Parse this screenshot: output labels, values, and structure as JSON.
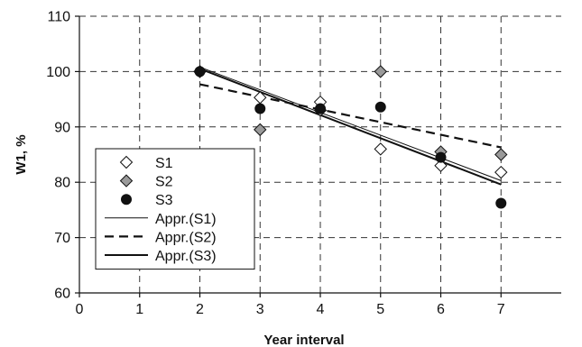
{
  "chart_data": {
    "type": "scatter",
    "title": "",
    "xlabel": "Year interval",
    "ylabel": "W1, %",
    "xlim": [
      0,
      8
    ],
    "ylim": [
      60,
      110
    ],
    "xticks": [
      0,
      1,
      2,
      3,
      4,
      5,
      6,
      7
    ],
    "yticks": [
      60,
      70,
      80,
      90,
      100,
      110
    ],
    "grid": true,
    "grid_style": "dashed",
    "legend_position": "bottom-left",
    "series": [
      {
        "name": "S1",
        "kind": "points",
        "marker": "diamond-open",
        "x": [
          2,
          3,
          4,
          5,
          6,
          7
        ],
        "y": [
          100,
          95.3,
          94.5,
          86,
          83,
          81.8
        ]
      },
      {
        "name": "S2",
        "kind": "points",
        "marker": "diamond-gray",
        "x": [
          2,
          3,
          4,
          5,
          6,
          7
        ],
        "y": [
          100,
          89.5,
          93,
          100,
          85.5,
          85
        ]
      },
      {
        "name": "S3",
        "kind": "points",
        "marker": "circle-filled",
        "x": [
          2,
          3,
          4,
          5,
          6,
          7
        ],
        "y": [
          100,
          93.3,
          93.3,
          93.6,
          84.5,
          76.2
        ]
      },
      {
        "name": "Appr.(S1)",
        "kind": "line",
        "style": "thin-solid",
        "x": [
          2,
          7
        ],
        "y": [
          100.8,
          80.3
        ]
      },
      {
        "name": "Appr.(S2)",
        "kind": "line",
        "style": "dashed",
        "x": [
          2,
          7
        ],
        "y": [
          97.7,
          86.3
        ]
      },
      {
        "name": "Appr.(S3)",
        "kind": "line",
        "style": "thick-solid",
        "x": [
          2,
          7
        ],
        "y": [
          100.5,
          79.6
        ]
      }
    ],
    "colors": {
      "axis": "#111111",
      "grid": "#333333",
      "s2_fill": "#9a9a9a",
      "s3_fill": "#111111"
    }
  }
}
